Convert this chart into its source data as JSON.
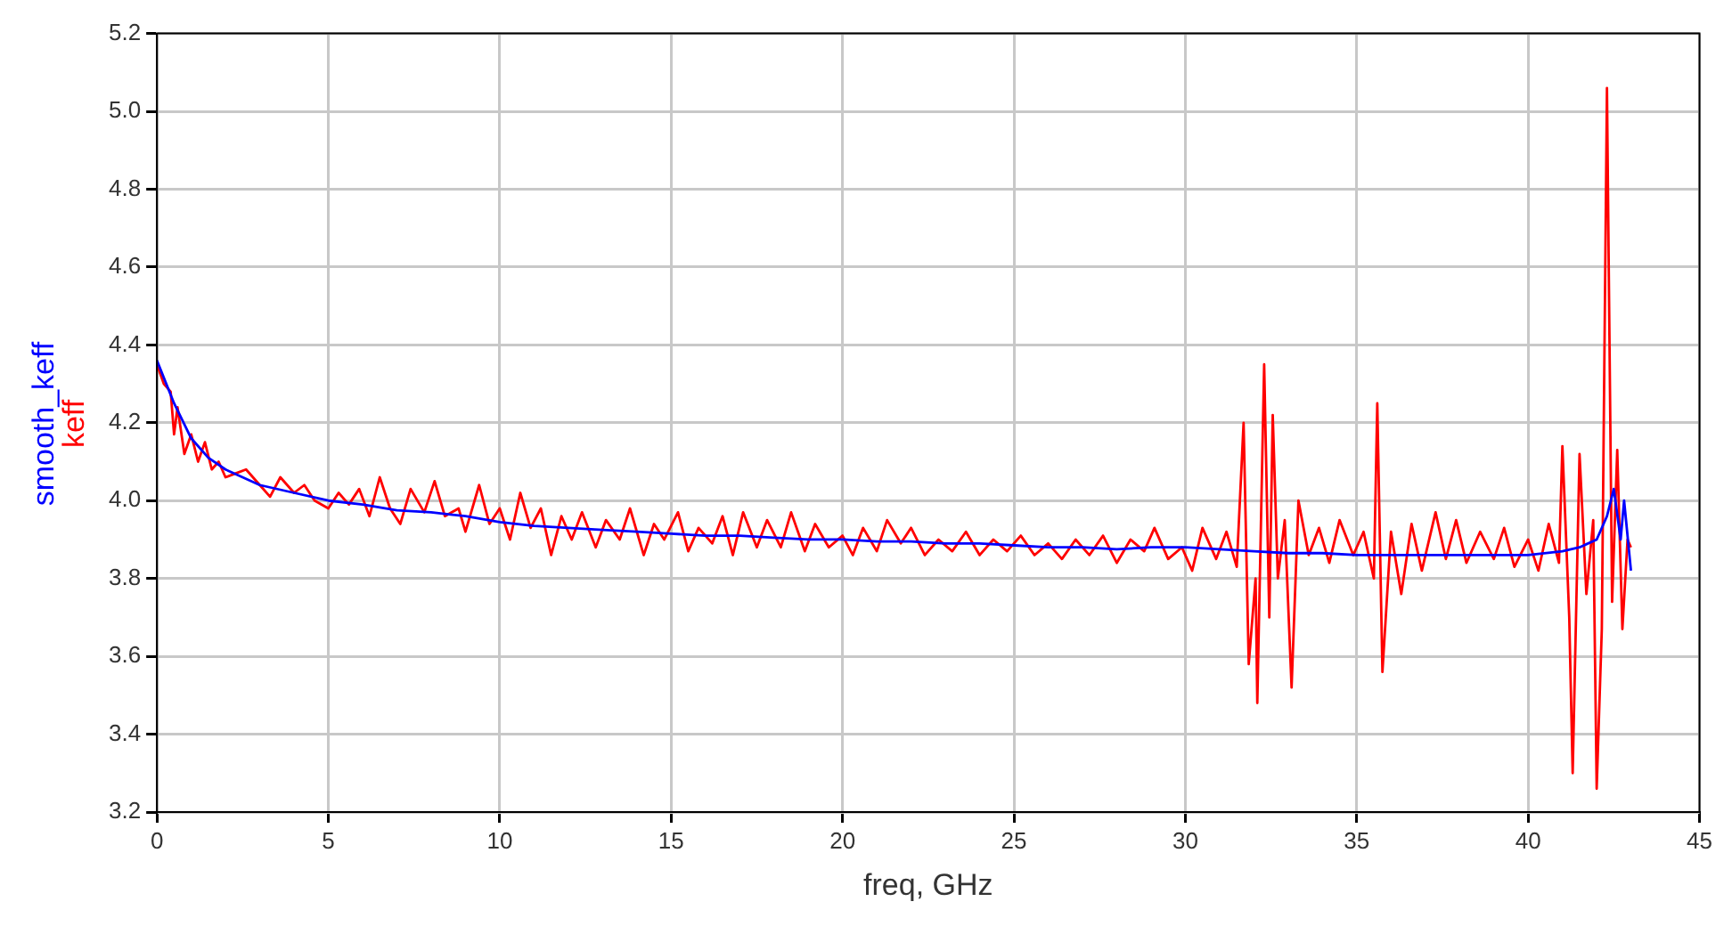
{
  "chart_data": {
    "type": "line",
    "xlabel": "freq, GHz",
    "legend": "left",
    "grid": true,
    "marker": "none",
    "line_style": "solid",
    "xlim": [
      0,
      45
    ],
    "xticks": [
      0,
      5,
      10,
      15,
      20,
      25,
      30,
      35,
      40,
      45
    ],
    "ylim": [
      3.2,
      5.2
    ],
    "yticks": [
      3.2,
      3.4,
      3.6,
      3.8,
      {
        "value": 4,
        "label": "4.0"
      },
      4.2,
      4.4,
      4.6,
      4.8,
      {
        "value": 5,
        "label": "5.0"
      },
      5.2
    ],
    "series": [
      {
        "name": "smooth_keff",
        "color": "#0000ff",
        "x": [
          0,
          0.5,
          1,
          1.5,
          2,
          3,
          4,
          5,
          6,
          7,
          8,
          9,
          10,
          11,
          12,
          13,
          14,
          15,
          16,
          17,
          18,
          19,
          20,
          21,
          22,
          23,
          24,
          25,
          26,
          27,
          28,
          29,
          30,
          31,
          32,
          33,
          34,
          35,
          36,
          37,
          38,
          39,
          40,
          41,
          41.5,
          42,
          42.3,
          42.5,
          42.7,
          42.8,
          43
        ],
        "values": [
          4.36,
          4.25,
          4.16,
          4.11,
          4.08,
          4.04,
          4.02,
          4.0,
          3.99,
          3.975,
          3.97,
          3.96,
          3.945,
          3.935,
          3.93,
          3.925,
          3.92,
          3.915,
          3.91,
          3.91,
          3.905,
          3.9,
          3.9,
          3.895,
          3.895,
          3.89,
          3.89,
          3.885,
          3.88,
          3.88,
          3.875,
          3.88,
          3.88,
          3.875,
          3.87,
          3.865,
          3.865,
          3.86,
          3.86,
          3.86,
          3.86,
          3.86,
          3.86,
          3.87,
          3.88,
          3.9,
          3.96,
          4.03,
          3.9,
          4.0,
          3.82
        ]
      },
      {
        "name": "keff",
        "color": "#ff0000",
        "x": [
          0,
          0.2,
          0.4,
          0.5,
          0.6,
          0.8,
          1.0,
          1.2,
          1.4,
          1.6,
          1.8,
          2.0,
          2.3,
          2.6,
          3.0,
          3.3,
          3.6,
          4.0,
          4.3,
          4.6,
          5.0,
          5.3,
          5.6,
          5.9,
          6.2,
          6.5,
          6.8,
          7.1,
          7.4,
          7.8,
          8.1,
          8.4,
          8.8,
          9.0,
          9.4,
          9.7,
          10.0,
          10.3,
          10.6,
          10.9,
          11.2,
          11.5,
          11.8,
          12.1,
          12.4,
          12.8,
          13.1,
          13.5,
          13.8,
          14.2,
          14.5,
          14.8,
          15.2,
          15.5,
          15.8,
          16.2,
          16.5,
          16.8,
          17.1,
          17.5,
          17.8,
          18.2,
          18.5,
          18.9,
          19.2,
          19.6,
          20.0,
          20.3,
          20.6,
          21.0,
          21.3,
          21.7,
          22.0,
          22.4,
          22.8,
          23.2,
          23.6,
          24.0,
          24.4,
          24.8,
          25.2,
          25.6,
          26.0,
          26.4,
          26.8,
          27.2,
          27.6,
          28.0,
          28.4,
          28.8,
          29.1,
          29.5,
          29.9,
          30.2,
          30.5,
          30.9,
          31.2,
          31.5,
          31.7,
          31.85,
          32.05,
          32.1,
          32.3,
          32.45,
          32.55,
          32.7,
          32.9,
          33.1,
          33.3,
          33.6,
          33.9,
          34.2,
          34.5,
          34.9,
          35.2,
          35.5,
          35.6,
          35.75,
          36.0,
          36.3,
          36.6,
          36.9,
          37.3,
          37.6,
          37.9,
          38.2,
          38.6,
          39.0,
          39.3,
          39.6,
          40.0,
          40.3,
          40.6,
          40.9,
          41.0,
          41.2,
          41.3,
          41.5,
          41.7,
          41.9,
          42.0,
          42.15,
          42.3,
          42.45,
          42.6,
          42.75,
          42.9,
          43.0
        ],
        "values": [
          4.35,
          4.3,
          4.28,
          4.17,
          4.24,
          4.12,
          4.17,
          4.1,
          4.15,
          4.08,
          4.1,
          4.06,
          4.07,
          4.08,
          4.04,
          4.01,
          4.06,
          4.02,
          4.04,
          4.0,
          3.98,
          4.02,
          3.99,
          4.03,
          3.96,
          4.06,
          3.98,
          3.94,
          4.03,
          3.97,
          4.05,
          3.96,
          3.98,
          3.92,
          4.04,
          3.94,
          3.98,
          3.9,
          4.02,
          3.93,
          3.98,
          3.86,
          3.96,
          3.9,
          3.97,
          3.88,
          3.95,
          3.9,
          3.98,
          3.86,
          3.94,
          3.9,
          3.97,
          3.87,
          3.93,
          3.89,
          3.96,
          3.86,
          3.97,
          3.88,
          3.95,
          3.88,
          3.97,
          3.87,
          3.94,
          3.88,
          3.91,
          3.86,
          3.93,
          3.87,
          3.95,
          3.89,
          3.93,
          3.86,
          3.9,
          3.87,
          3.92,
          3.86,
          3.9,
          3.87,
          3.91,
          3.86,
          3.89,
          3.85,
          3.9,
          3.86,
          3.91,
          3.84,
          3.9,
          3.87,
          3.93,
          3.85,
          3.88,
          3.82,
          3.93,
          3.85,
          3.92,
          3.83,
          4.2,
          3.58,
          3.8,
          3.48,
          4.35,
          3.7,
          4.22,
          3.8,
          3.95,
          3.52,
          4.0,
          3.86,
          3.93,
          3.84,
          3.95,
          3.86,
          3.92,
          3.8,
          4.25,
          3.56,
          3.92,
          3.76,
          3.94,
          3.82,
          3.97,
          3.85,
          3.95,
          3.84,
          3.92,
          3.85,
          3.93,
          3.83,
          3.9,
          3.82,
          3.94,
          3.84,
          4.14,
          3.7,
          3.3,
          4.12,
          3.76,
          3.95,
          3.26,
          3.67,
          5.06,
          3.74,
          4.13,
          3.67,
          3.9,
          3.88
        ]
      }
    ]
  }
}
